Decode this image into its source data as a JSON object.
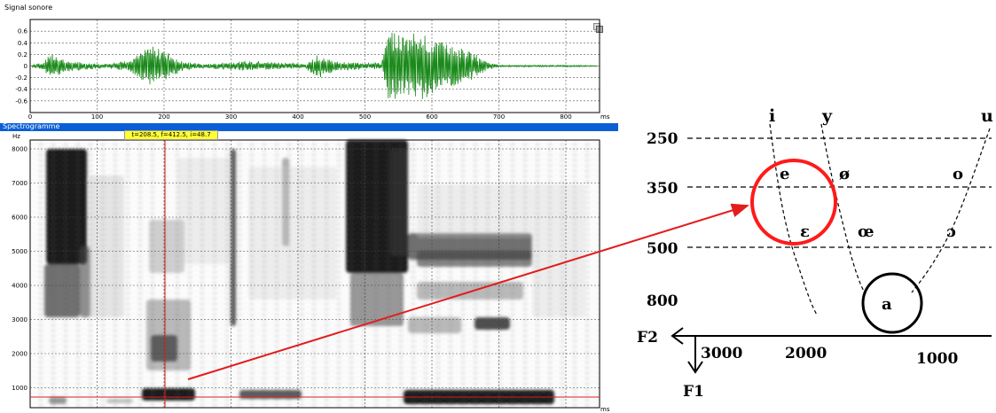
{
  "signal_panel": {
    "title": "Signal sonore",
    "y_ticks": [
      "0.6",
      "0.4",
      "0.2",
      "0",
      "-0.2",
      "-0.4",
      "-0.6"
    ],
    "x_ticks": [
      "0",
      "100",
      "200",
      "300",
      "400",
      "500",
      "600",
      "700",
      "800"
    ],
    "x_unit": "ms"
  },
  "spectrogram_panel": {
    "title": "Spectrogramme",
    "y_unit": "Hz",
    "y_ticks": [
      "8000",
      "7000",
      "6000",
      "5000",
      "4000",
      "3000",
      "2000",
      "1000"
    ],
    "x_unit": "ms",
    "cursor_readout": "t=208.5, f=412.5, i=48.7"
  },
  "vowel_chart": {
    "f1_ticks": [
      "250",
      "350",
      "500",
      "800"
    ],
    "f2_ticks": [
      "3000",
      "2000",
      "1000"
    ],
    "f2_label": "F2",
    "f1_label": "F1",
    "vowels": {
      "i": "i",
      "y": "y",
      "u": "u",
      "e": "e",
      "o_slash": "ø",
      "o": "o",
      "epsilon": "ε",
      "oe": "œ",
      "open_o": "ɔ",
      "a": "a"
    }
  },
  "colors": {
    "waveform": "#1b8a1b",
    "cursor": "#e31c1c",
    "highlight": "#ff1a1a",
    "header": "#0a5fd6"
  }
}
